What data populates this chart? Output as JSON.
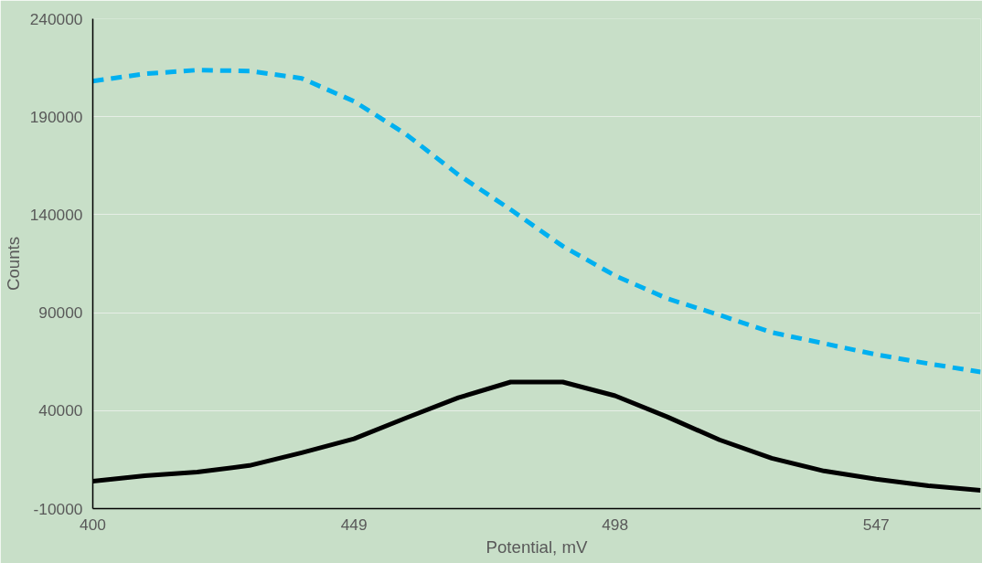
{
  "chart_data": {
    "type": "line",
    "xlabel": "Potential, mV",
    "ylabel": "Counts",
    "x": [
      400,
      409.8,
      419.6,
      429.4,
      439.2,
      449,
      458.8,
      468.6,
      478.4,
      488.2,
      498,
      507.8,
      517.6,
      527.4,
      537.2,
      547,
      556.8,
      566.6
    ],
    "series": [
      {
        "color": "#00b0f0",
        "line_style": "dashed",
        "values": [
          208200,
          211900,
          213800,
          213300,
          209600,
          197900,
          181000,
          160400,
          142600,
          123900,
          108900,
          97200,
          88800,
          79900,
          74300,
          68600,
          64000,
          59700
        ]
      },
      {
        "color": "#000000",
        "line_style": "solid",
        "values": [
          4000,
          6800,
          8700,
          12000,
          18500,
          25600,
          36300,
          46600,
          54600,
          54600,
          47600,
          36800,
          25100,
          15700,
          9200,
          5000,
          1700,
          -700
        ]
      }
    ],
    "xlim": [
      400,
      566.6
    ],
    "xticks": [
      400,
      449,
      498,
      547
    ],
    "ylim": [
      -10000,
      240000
    ],
    "yticks": [
      -10000,
      40000,
      90000,
      140000,
      190000,
      240000
    ],
    "grid": "y",
    "marker": "none"
  }
}
